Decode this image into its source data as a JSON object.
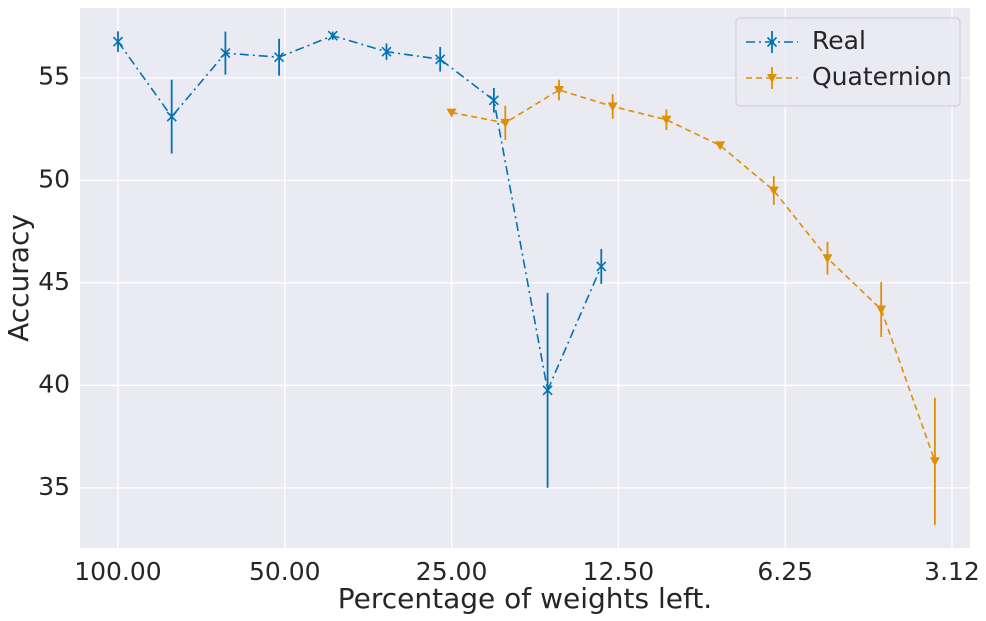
{
  "chart_data": {
    "type": "line",
    "xlabel": "Percentage of weights left.",
    "ylabel": "Accuracy",
    "xscale": "log",
    "xlim": [
      117.1,
      2.9
    ],
    "ylim": [
      32.07,
      58.4
    ],
    "xticks": [
      {
        "value": 100,
        "label": "100.00"
      },
      {
        "value": 50,
        "label": "50.00"
      },
      {
        "value": 25,
        "label": "25.00"
      },
      {
        "value": 12.5,
        "label": "12.50"
      },
      {
        "value": 6.25,
        "label": "6.25"
      },
      {
        "value": 3.125,
        "label": "3.12"
      }
    ],
    "yticks": [
      35,
      40,
      45,
      50,
      55
    ],
    "grid": true,
    "legend": "upper right",
    "series": [
      {
        "name": "Real",
        "color": "#0173b2",
        "marker": "x",
        "linestyle": "dashdot",
        "x": [
          100,
          80,
          64,
          51.2,
          40.96,
          32.768,
          26.2144,
          20.97152,
          16.777216,
          13.4217728
        ],
        "values": [
          56.76,
          53.1,
          56.2,
          56.0,
          57.05,
          56.27,
          55.9,
          53.9,
          39.76,
          45.8
        ],
        "errors": [
          0.5,
          1.8,
          1.05,
          0.9,
          0.2,
          0.4,
          0.6,
          0.6,
          4.75,
          0.85
        ]
      },
      {
        "name": "Quaternion",
        "color": "#de8f05",
        "marker": "v",
        "linestyle": "dashed",
        "x": [
          25,
          20,
          16,
          12.8,
          10.24,
          8.192,
          6.5536,
          5.24288,
          4.194304,
          3.3554432
        ],
        "values": [
          53.3,
          52.8,
          54.4,
          53.6,
          52.95,
          51.7,
          49.5,
          46.2,
          43.7,
          36.3
        ],
        "errors": [
          0.1,
          0.83,
          0.5,
          0.6,
          0.5,
          0.1,
          0.7,
          0.8,
          1.34,
          3.1
        ]
      }
    ]
  }
}
